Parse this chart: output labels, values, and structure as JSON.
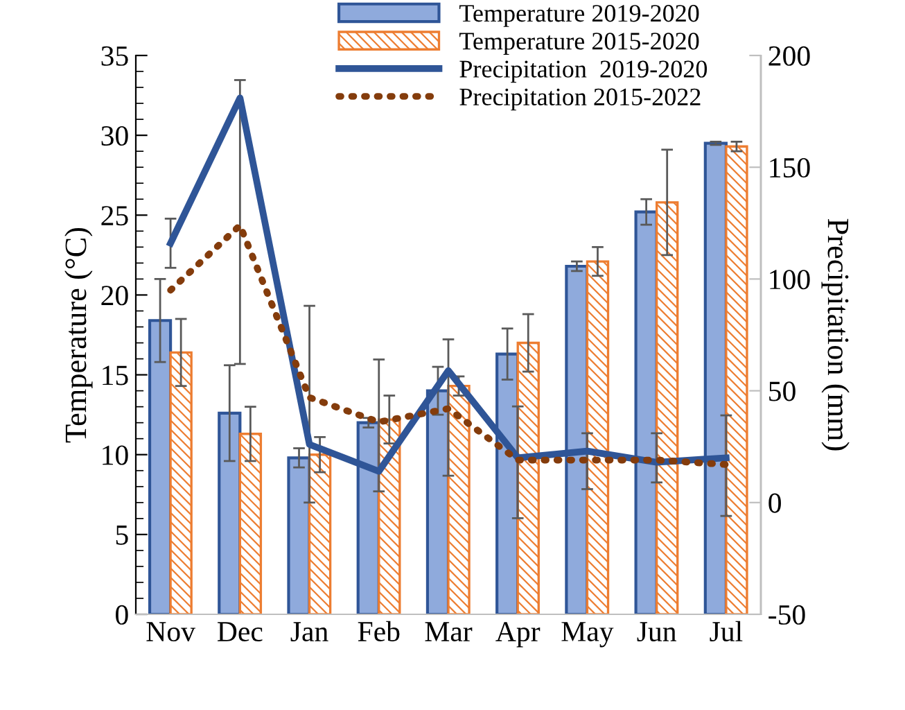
{
  "chart_data": {
    "type": "bar",
    "categories": [
      "Nov",
      "Dec",
      "Jan",
      "Feb",
      "Mar",
      "Apr",
      "May",
      "Jun",
      "Jul"
    ],
    "ylabel": "Temperature (°C)",
    "y2label": "Precipitation (mm)",
    "ylim": [
      0,
      35
    ],
    "yticks": [
      0,
      5,
      10,
      15,
      20,
      25,
      30,
      35
    ],
    "y2lim": [
      -50,
      200
    ],
    "y2ticks": [
      -50,
      0,
      50,
      100,
      150,
      200
    ],
    "legend": "top",
    "grid": false,
    "series": [
      {
        "name": "Temperature 2019-2020",
        "color": "#8faadc",
        "values": [
          18.4,
          12.6,
          9.8,
          12.0,
          14.0,
          16.3,
          21.8,
          25.2,
          29.5
        ],
        "errors": [
          2.6,
          3.0,
          0.6,
          0.3,
          1.5,
          1.6,
          0.3,
          0.8,
          0.1
        ]
      },
      {
        "name": "Temperature 2015-2020",
        "color": "#ed7d31",
        "values": [
          16.4,
          11.3,
          10.0,
          12.2,
          14.3,
          17.0,
          22.1,
          25.8,
          29.3
        ],
        "errors": [
          2.1,
          1.7,
          1.1,
          1.5,
          0.6,
          1.8,
          0.9,
          3.3,
          0.3
        ]
      },
      {
        "name": "Precipitation  2019-2020",
        "type": "line",
        "axis": "y2",
        "color": "#2f5597",
        "line_style": "solid",
        "values": [
          116,
          181,
          26,
          14,
          59,
          20,
          23,
          18,
          20
        ],
        "errors": [
          [
            105,
            127
          ],
          [
            62,
            189
          ],
          [
            0,
            88
          ],
          [
            5,
            64
          ],
          [
            12,
            73
          ],
          [
            -7,
            43
          ],
          [
            6,
            31
          ],
          [
            9,
            31
          ],
          [
            -6,
            39
          ]
        ]
      },
      {
        "name": "Precipitation 2015-2022",
        "type": "line",
        "axis": "y2",
        "color": "#843c0c",
        "line_style": "dotted",
        "values": [
          95,
          124,
          47,
          36,
          42,
          19,
          19,
          19,
          17
        ]
      }
    ]
  }
}
